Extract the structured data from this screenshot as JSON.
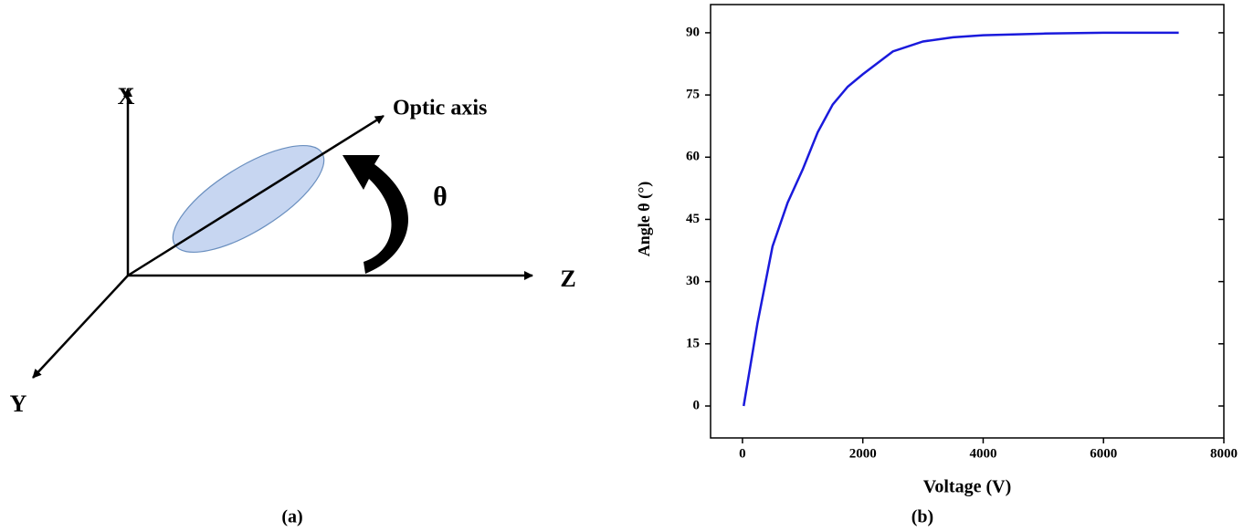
{
  "diagram": {
    "x_label": "X",
    "y_label": "Y",
    "z_label": "Z",
    "optic_axis_label": "Optic axis",
    "angle_label": "θ"
  },
  "captions": [
    "(a)",
    "(b)"
  ],
  "chart_data": {
    "type": "line",
    "x_label": "Voltage (V)",
    "y_label": "Angle θ (°)",
    "x": [
      20,
      250,
      500,
      750,
      1000,
      1250,
      1500,
      1750,
      2000,
      2500,
      3000,
      3500,
      4000,
      5000,
      6000,
      7250
    ],
    "series": [
      {
        "color": "#1a1adc",
        "values": [
          0,
          20,
          38.5,
          49,
          57,
          66,
          72.7,
          77,
          80,
          85.5,
          87.9,
          88.9,
          89.4,
          89.8,
          90,
          90
        ]
      }
    ],
    "xlim": [
      -530,
      8000
    ],
    "xticks": [
      0,
      2000,
      4000,
      6000,
      8000
    ],
    "ylim": [
      -7.7,
      96.8
    ],
    "yticks": [
      0,
      15,
      30,
      45,
      60,
      75,
      90
    ]
  }
}
